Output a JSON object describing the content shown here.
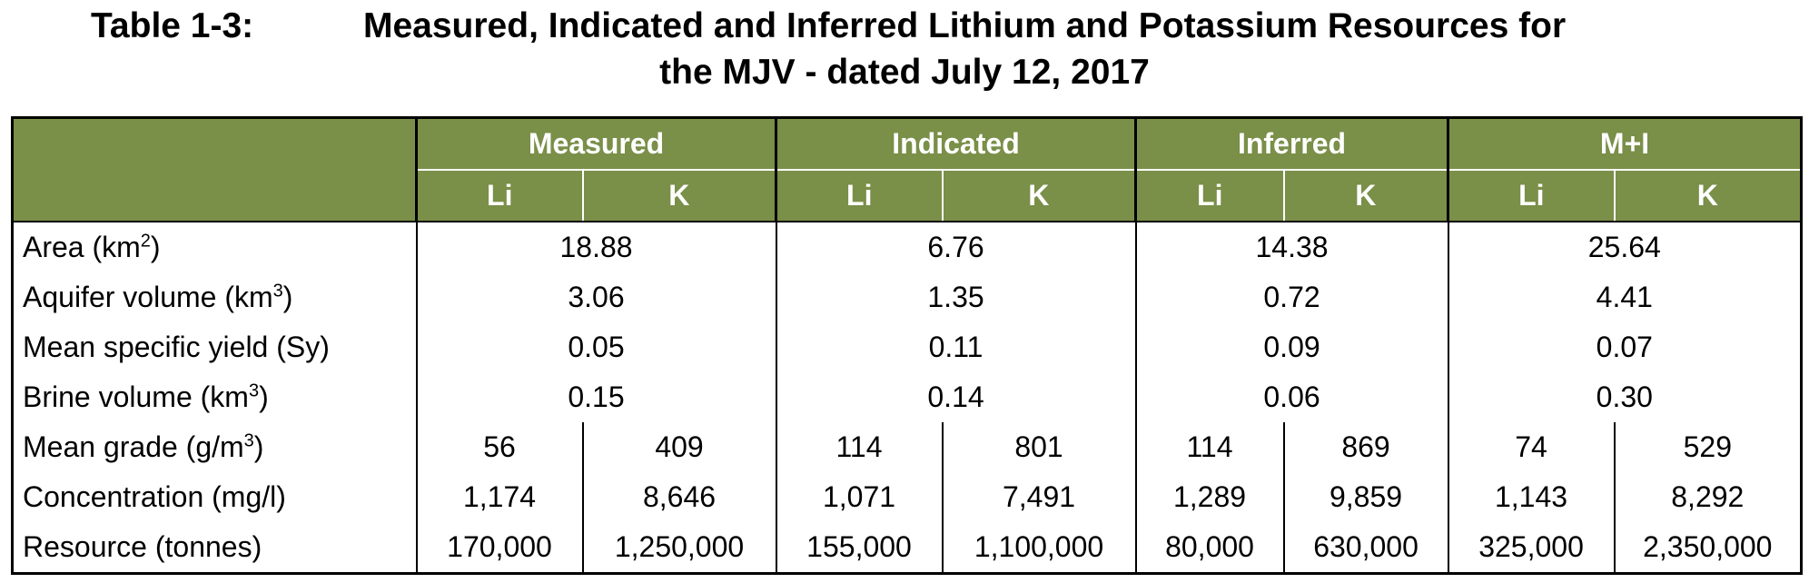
{
  "title": {
    "number": "Table 1-3:",
    "line1": "Measured, Indicated and Inferred Lithium and Potassium Resources for",
    "line2": "the MJV - dated July 12, 2017"
  },
  "colors": {
    "header_bg": "#7a8f48",
    "header_text": "#ffffff"
  },
  "table": {
    "groups": [
      "Measured",
      "Indicated",
      "Inferred",
      "M+I"
    ],
    "subheaders": [
      "Li",
      "K",
      "Li",
      "K",
      "Li",
      "K",
      "Li",
      "K"
    ],
    "rows": [
      {
        "label": "Area (km",
        "sup": "2",
        "label_end": ")",
        "merged": [
          "18.88",
          "6.76",
          "14.38",
          "25.64"
        ]
      },
      {
        "label": "Aquifer volume (km",
        "sup": "3",
        "label_end": ")",
        "merged": [
          "3.06",
          "1.35",
          "0.72",
          "4.41"
        ]
      },
      {
        "label": "Mean specific yield (Sy)",
        "merged": [
          "0.05",
          "0.11",
          "0.09",
          "0.07"
        ]
      },
      {
        "label": "Brine volume (km",
        "sup": "3",
        "label_end": ")",
        "merged": [
          "0.15",
          "0.14",
          "0.06",
          "0.30"
        ]
      },
      {
        "label": "Mean grade (g/m",
        "sup": "3",
        "label_end": ")",
        "cells": [
          "56",
          "409",
          "114",
          "801",
          "114",
          "869",
          "74",
          "529"
        ]
      },
      {
        "label": "Concentration (mg/l)",
        "cells": [
          "1,174",
          "8,646",
          "1,071",
          "7,491",
          "1,289",
          "9,859",
          "1,143",
          "8,292"
        ]
      },
      {
        "label": "Resource (tonnes)",
        "cells": [
          "170,000",
          "1,250,000",
          "155,000",
          "1,100,000",
          "80,000",
          "630,000",
          "325,000",
          "2,350,000"
        ]
      }
    ]
  }
}
